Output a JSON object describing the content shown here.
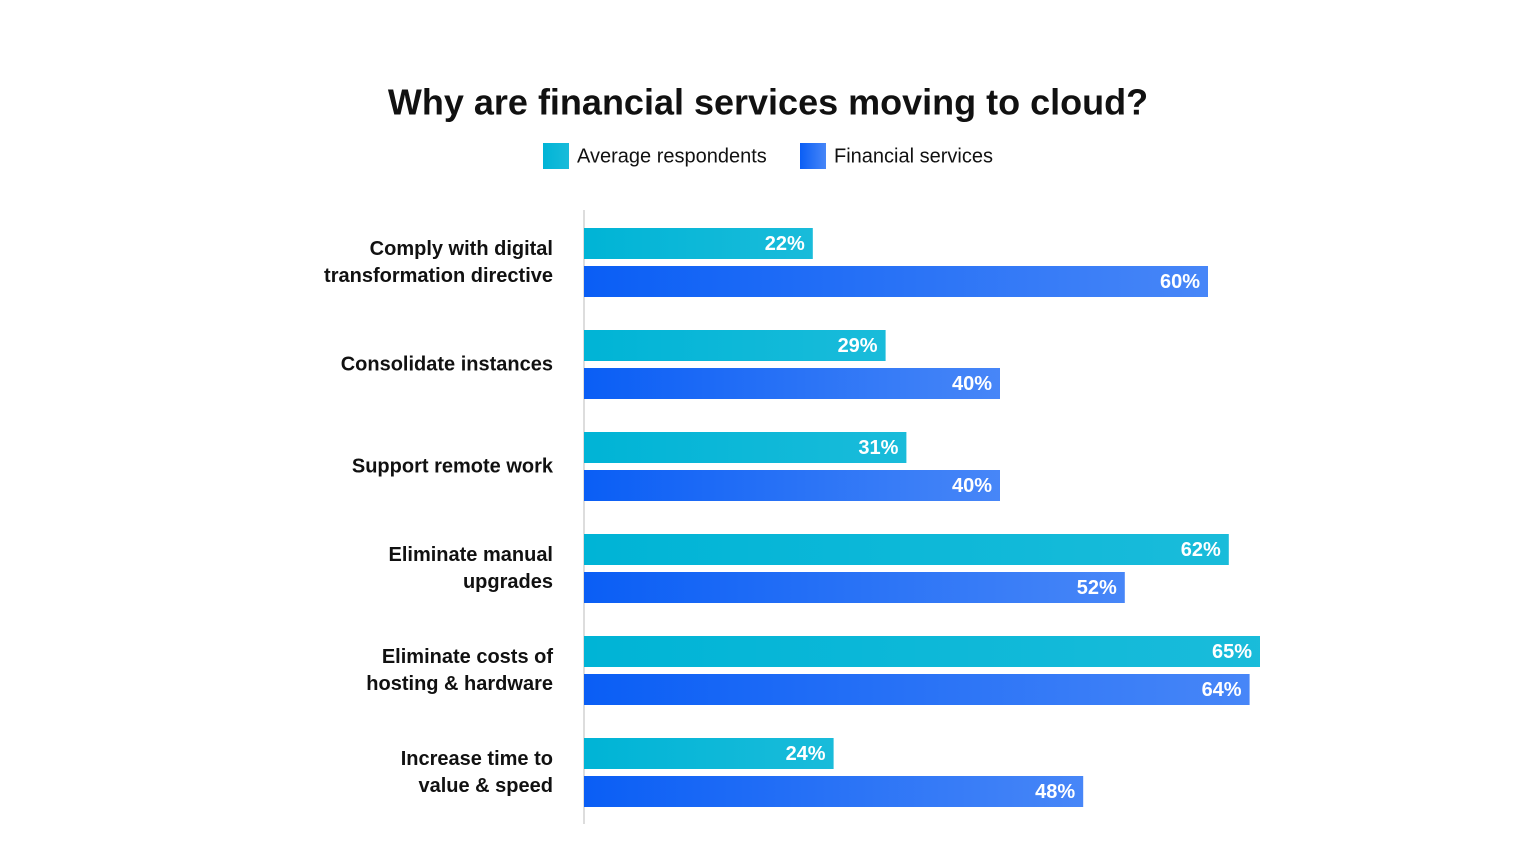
{
  "chart_data": {
    "type": "bar",
    "orientation": "horizontal",
    "title": "Why are financial services moving to cloud?",
    "categories": [
      "Comply with digital\ntransformation directive",
      "Consolidate instances",
      "Support remote work",
      "Eliminate manual\nupgrades",
      "Eliminate costs of\nhosting & hardware",
      "Increase time to\nvalue & speed"
    ],
    "series": [
      {
        "name": "Average respondents",
        "color": "#00b4d6",
        "values": [
          22,
          29,
          31,
          62,
          65,
          24
        ],
        "value_labels": [
          "22%",
          "29%",
          "31%",
          "62%",
          "65%",
          "24%"
        ]
      },
      {
        "name": "Financial services",
        "color": "#0a5ef5",
        "values": [
          60,
          40,
          40,
          52,
          64,
          48
        ],
        "value_labels": [
          "60%",
          "40%",
          "40%",
          "52%",
          "64%",
          "48%"
        ]
      }
    ],
    "xlim": [
      0,
      65
    ],
    "legend": "top"
  }
}
